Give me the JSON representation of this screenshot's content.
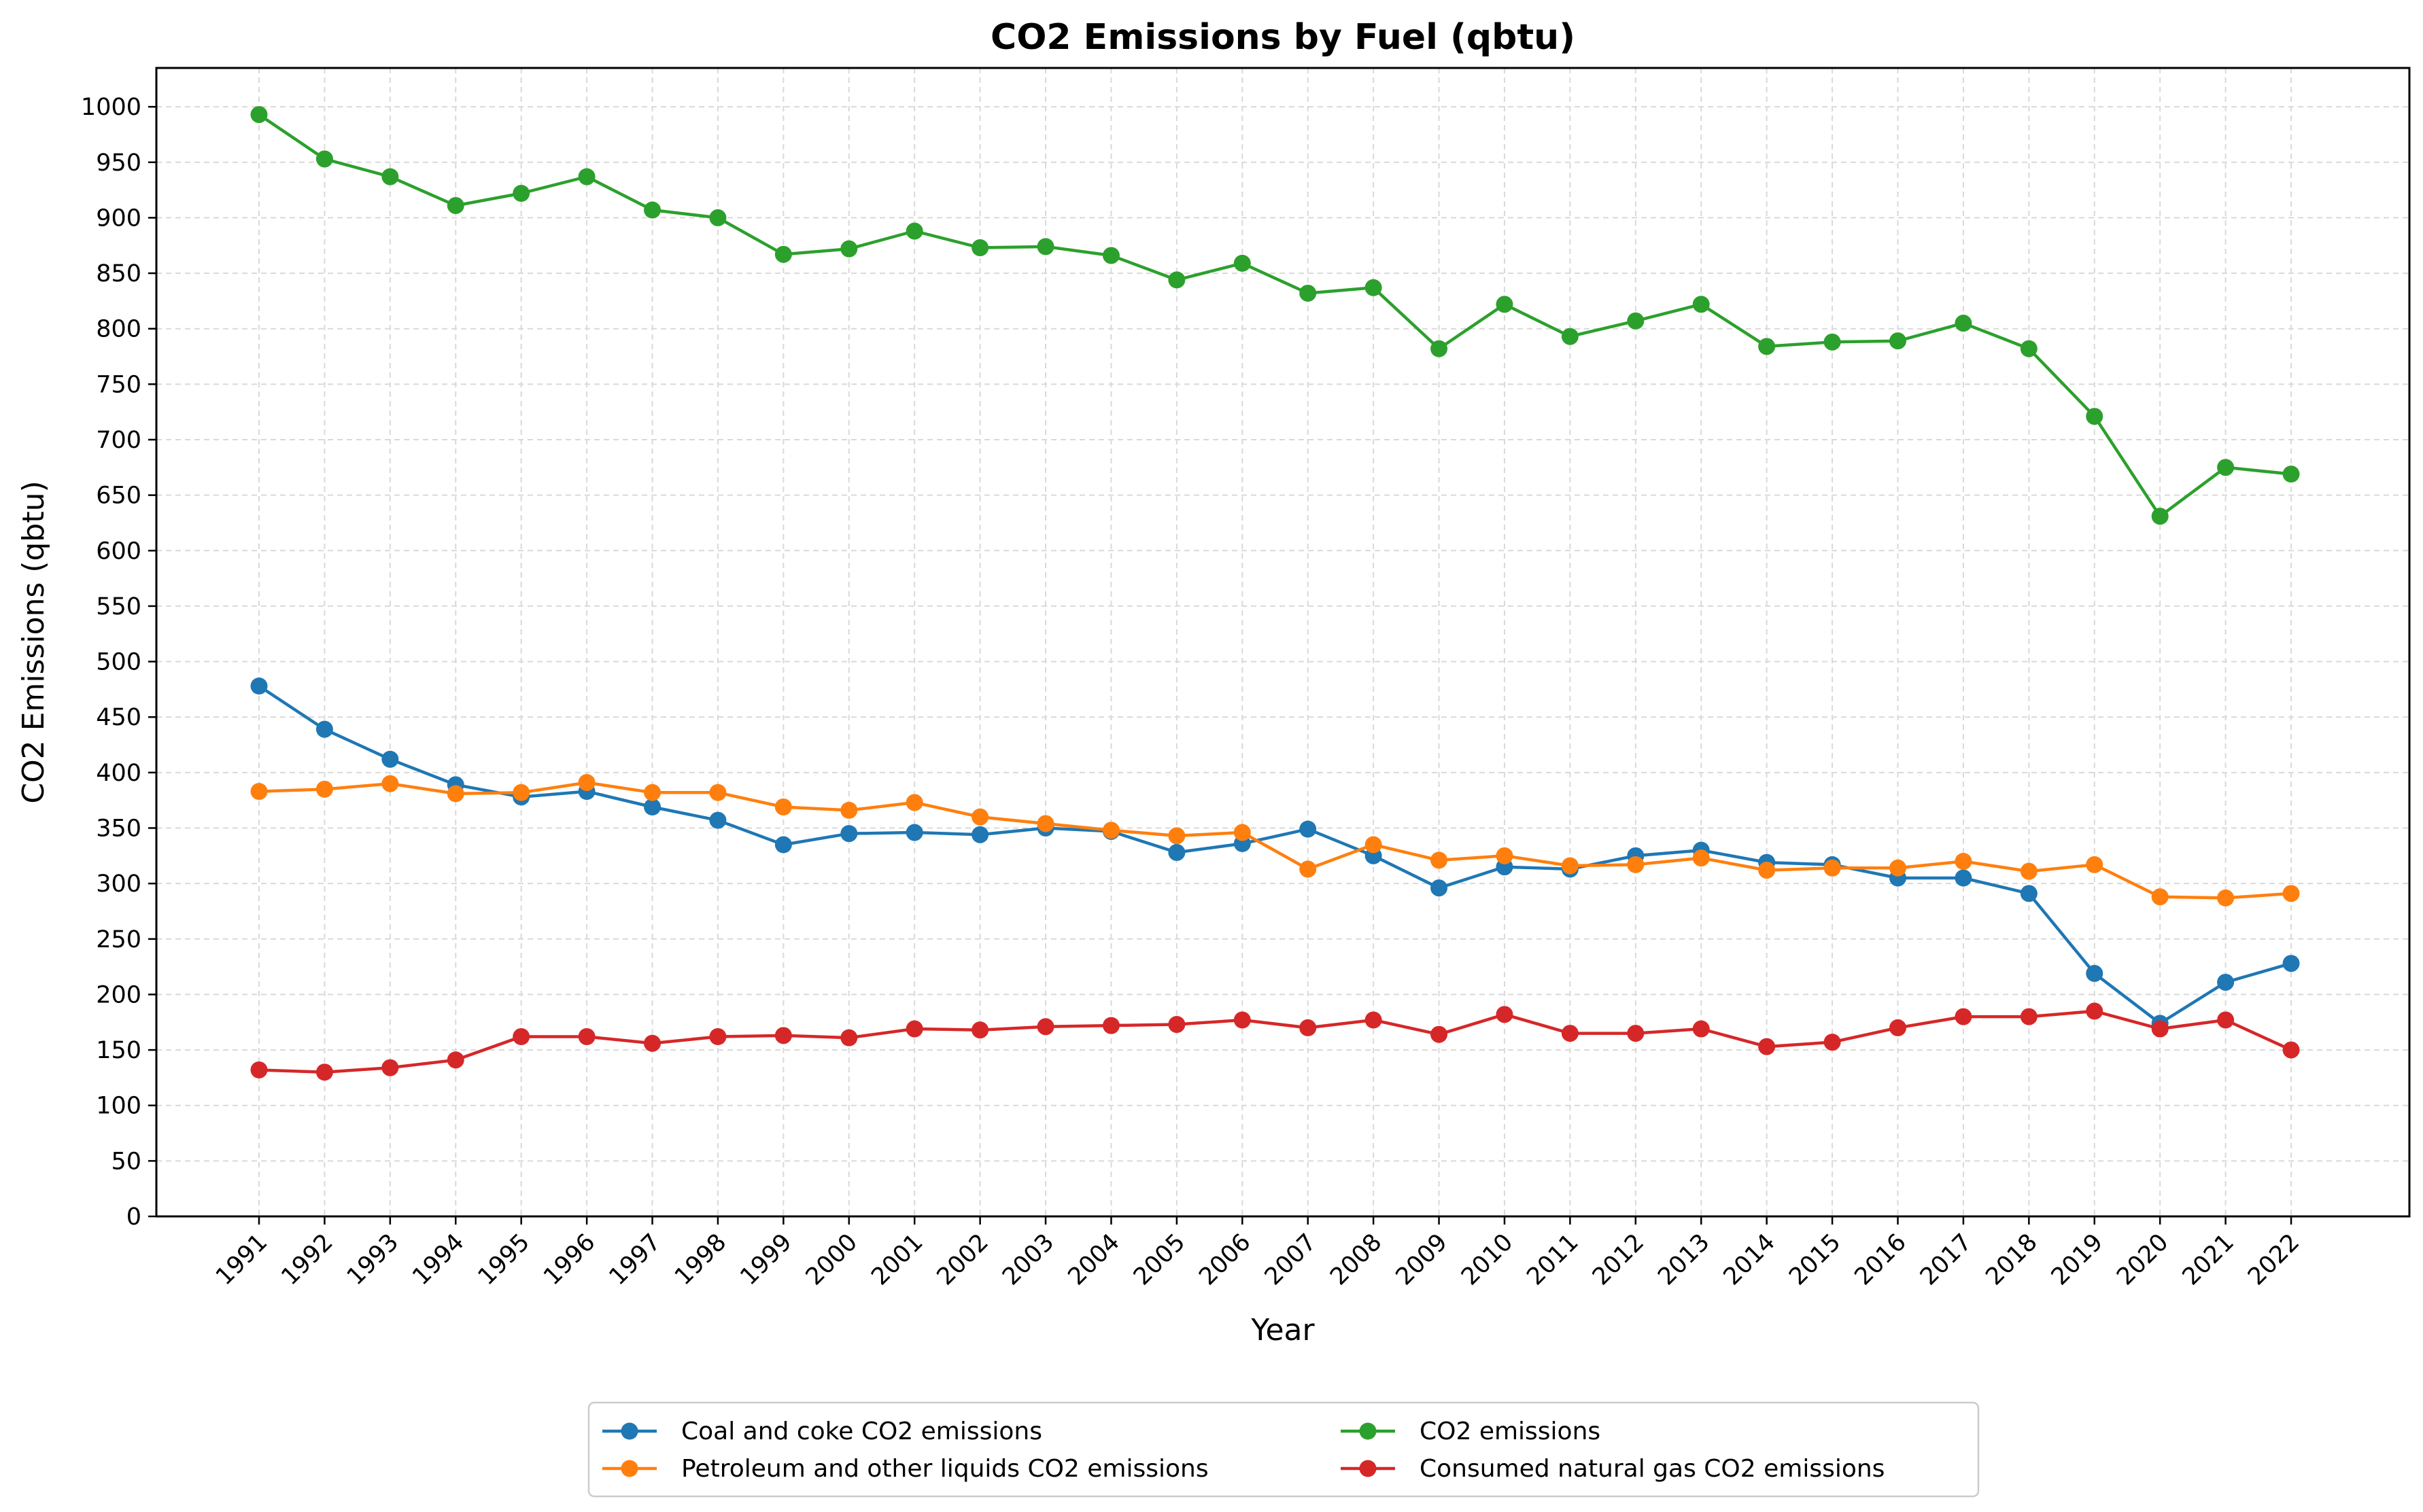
{
  "chart_data": {
    "type": "line",
    "title": "CO2 Emissions by Fuel (qbtu)",
    "xlabel": "Year",
    "ylabel": "CO2 Emissions (qbtu)",
    "ylim": [
      0,
      1035
    ],
    "yticks": [
      0,
      50,
      100,
      150,
      200,
      250,
      300,
      350,
      400,
      450,
      500,
      550,
      600,
      650,
      700,
      750,
      800,
      850,
      900,
      950,
      1000
    ],
    "grid": true,
    "legend_position": "bottom-center",
    "categories": [
      "1991",
      "1992",
      "1993",
      "1994",
      "1995",
      "1996",
      "1997",
      "1998",
      "1999",
      "2000",
      "2001",
      "2002",
      "2003",
      "2004",
      "2005",
      "2006",
      "2007",
      "2008",
      "2009",
      "2010",
      "2011",
      "2012",
      "2013",
      "2014",
      "2015",
      "2016",
      "2017",
      "2018",
      "2019",
      "2020",
      "2021",
      "2022"
    ],
    "series": [
      {
        "name": "Coal and coke CO2 emissions",
        "color": "#1f77b4",
        "values": [
          478,
          439,
          412,
          389,
          378,
          383,
          369,
          357,
          335,
          345,
          346,
          344,
          350,
          347,
          328,
          336,
          349,
          325,
          296,
          315,
          313,
          325,
          330,
          319,
          317,
          305,
          305,
          291,
          219,
          174,
          211,
          228
        ]
      },
      {
        "name": "Petroleum and other liquids CO2 emissions",
        "color": "#ff7f0e",
        "values": [
          383,
          385,
          390,
          381,
          382,
          391,
          382,
          382,
          369,
          366,
          373,
          360,
          354,
          348,
          343,
          346,
          313,
          335,
          321,
          325,
          316,
          317,
          323,
          312,
          314,
          314,
          320,
          311,
          317,
          288,
          287,
          291
        ]
      },
      {
        "name": "CO2 emissions",
        "color": "#2ca02c",
        "values": [
          993,
          953,
          937,
          911,
          922,
          937,
          907,
          900,
          867,
          872,
          888,
          873,
          874,
          866,
          844,
          859,
          832,
          837,
          782,
          822,
          793,
          807,
          822,
          784,
          788,
          789,
          805,
          782,
          721,
          631,
          675,
          669
        ]
      },
      {
        "name": "Consumed natural gas CO2 emissions",
        "color": "#d62728",
        "values": [
          132,
          130,
          134,
          141,
          162,
          162,
          156,
          162,
          163,
          161,
          169,
          168,
          171,
          172,
          173,
          177,
          170,
          177,
          164,
          182,
          165,
          165,
          169,
          153,
          157,
          170,
          180,
          180,
          185,
          169,
          177,
          150
        ]
      }
    ]
  }
}
